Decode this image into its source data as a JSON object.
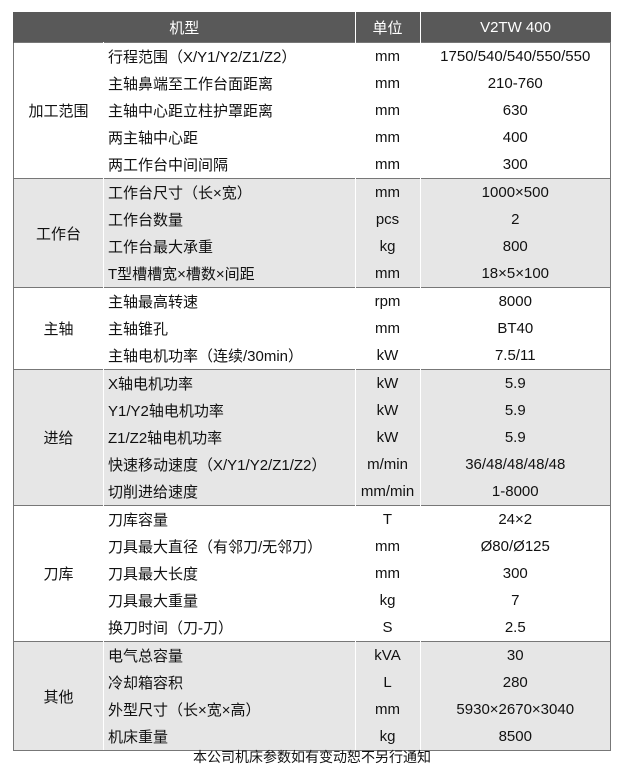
{
  "header": {
    "model": "机型",
    "unit": "单位",
    "value": "V2TW 400"
  },
  "groups": [
    {
      "name": "加工范围",
      "rows": [
        [
          "行程范围（X/Y1/Y2/Z1/Z2）",
          "mm",
          "1750/540/540/550/550"
        ],
        [
          "主轴鼻端至工作台面距离",
          "mm",
          "210-760"
        ],
        [
          "主轴中心距立柱护罩距离",
          "mm",
          "630"
        ],
        [
          "两主轴中心距",
          "mm",
          "400"
        ],
        [
          "两工作台中间间隔",
          "mm",
          "300"
        ]
      ]
    },
    {
      "name": "工作台",
      "rows": [
        [
          "工作台尺寸（长×宽）",
          "mm",
          "1000×500"
        ],
        [
          "工作台数量",
          "pcs",
          "2"
        ],
        [
          "工作台最大承重",
          "kg",
          "800"
        ],
        [
          "T型槽槽宽×槽数×间距",
          "mm",
          "18×5×100"
        ]
      ]
    },
    {
      "name": "主轴",
      "rows": [
        [
          "主轴最高转速",
          "rpm",
          "8000"
        ],
        [
          "主轴锥孔",
          "mm",
          "BT40"
        ],
        [
          "主轴电机功率（连续/30min）",
          "kW",
          "7.5/11"
        ]
      ]
    },
    {
      "name": "进给",
      "rows": [
        [
          "X轴电机功率",
          "kW",
          "5.9"
        ],
        [
          "Y1/Y2轴电机功率",
          "kW",
          "5.9"
        ],
        [
          "Z1/Z2轴电机功率",
          "kW",
          "5.9"
        ],
        [
          "快速移动速度（X/Y1/Y2/Z1/Z2）",
          "m/min",
          "36/48/48/48/48"
        ],
        [
          "切削进给速度",
          "mm/min",
          "1-8000"
        ]
      ]
    },
    {
      "name": "刀库",
      "rows": [
        [
          "刀库容量",
          "T",
          "24×2"
        ],
        [
          "刀具最大直径（有邻刀/无邻刀）",
          "mm",
          "Ø80/Ø125"
        ],
        [
          "刀具最大长度",
          "mm",
          "300"
        ],
        [
          "刀具最大重量",
          "kg",
          "7"
        ],
        [
          "换刀时间（刀-刀）",
          "S",
          "2.5"
        ]
      ]
    },
    {
      "name": "其他",
      "rows": [
        [
          "电气总容量",
          "kVA",
          "30"
        ],
        [
          "冷却箱容积",
          "L",
          "280"
        ],
        [
          "外型尺寸（长×宽×高）",
          "mm",
          "5930×2670×3040"
        ],
        [
          "机床重量",
          "kg",
          "8500"
        ]
      ]
    }
  ],
  "footer": "本公司机床参数如有变动恕不另行通知"
}
